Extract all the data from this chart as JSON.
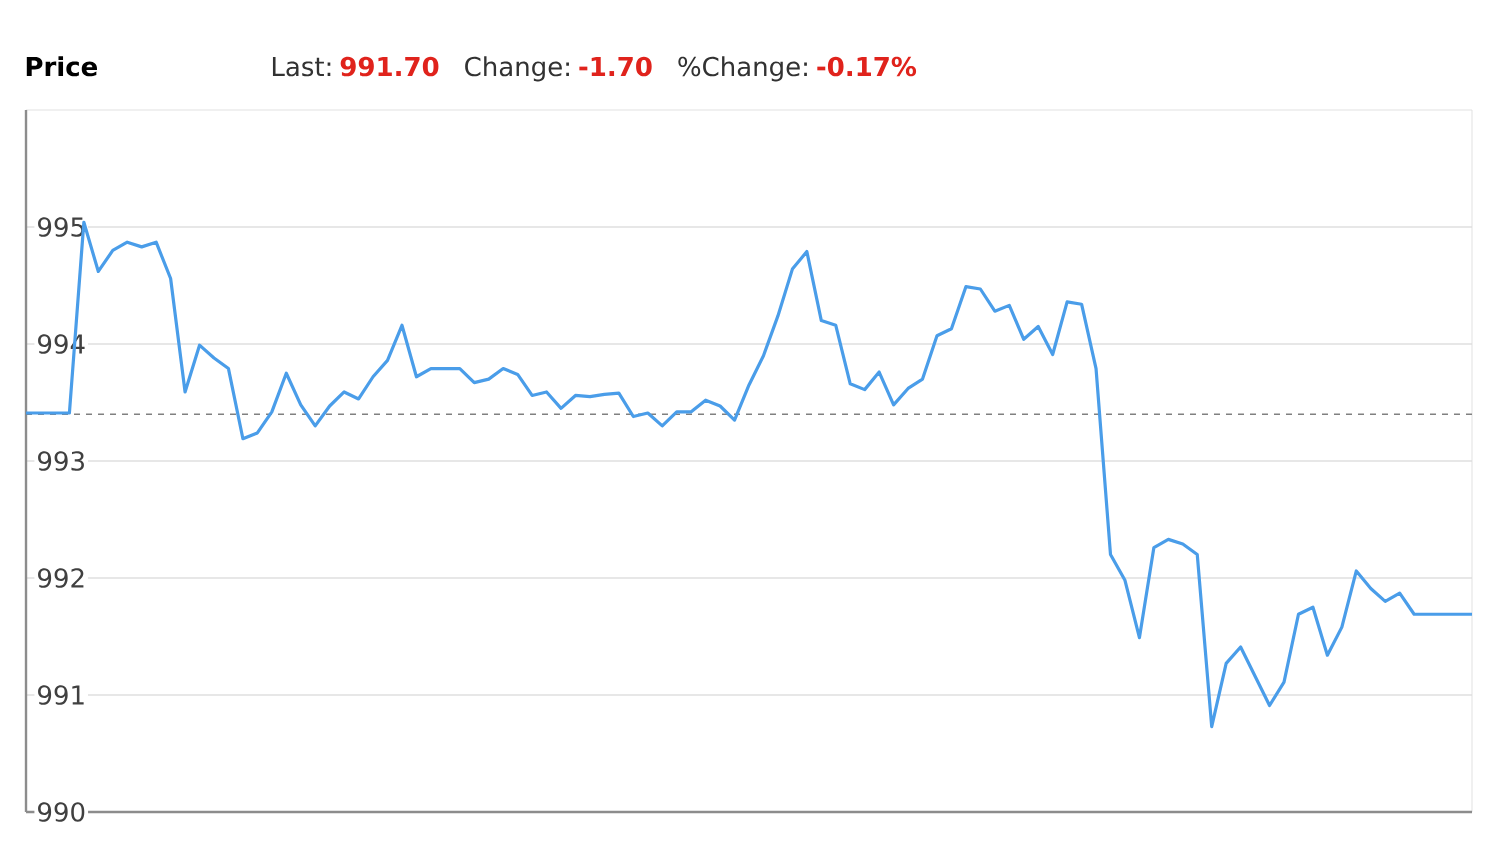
{
  "chart_data": {
    "type": "line",
    "title": "Price",
    "annotations": [
      "Last:",
      "991.70",
      "Change:",
      "-1.70",
      "%Change:",
      "-0.17%"
    ],
    "categories": [
      null,
      null,
      null,
      null,
      null,
      null,
      null,
      null,
      null,
      null,
      null,
      null,
      null,
      null,
      null,
      null,
      null,
      null,
      null,
      null,
      null,
      null,
      null,
      null,
      null,
      null,
      null,
      null,
      null,
      null,
      null,
      null,
      null,
      null,
      null,
      null,
      null,
      null,
      null,
      null,
      null,
      null,
      null,
      null,
      null,
      null,
      null,
      null,
      null,
      null,
      null,
      null,
      null,
      null,
      null,
      null,
      null,
      null,
      null,
      null,
      null,
      null,
      null,
      null,
      null,
      null,
      null,
      null,
      null,
      null,
      null,
      null,
      null,
      null,
      null,
      null,
      null,
      null,
      null,
      null,
      null,
      null,
      null,
      null,
      null,
      null,
      null,
      null,
      null,
      null,
      null,
      null,
      null,
      null,
      null,
      null,
      null,
      null,
      null,
      null,
      null
    ],
    "values": [
      993.41,
      993.41,
      993.41,
      993.41,
      995.04,
      994.62,
      994.8,
      994.87,
      994.83,
      994.87,
      994.56,
      993.59,
      993.99,
      993.88,
      993.79,
      993.19,
      993.24,
      993.42,
      993.75,
      993.48,
      993.3,
      993.47,
      993.59,
      993.53,
      993.72,
      993.86,
      994.16,
      993.72,
      993.79,
      993.79,
      993.79,
      993.67,
      993.7,
      993.79,
      993.74,
      993.56,
      993.59,
      993.45,
      993.56,
      993.55,
      993.57,
      993.58,
      993.38,
      993.41,
      993.3,
      993.42,
      993.42,
      993.52,
      993.47,
      993.35,
      993.65,
      993.9,
      994.24,
      994.64,
      994.79,
      994.2,
      994.16,
      993.66,
      993.61,
      993.76,
      993.48,
      993.62,
      993.7,
      994.07,
      994.13,
      994.49,
      994.47,
      994.28,
      994.33,
      994.04,
      994.15,
      993.91,
      994.36,
      994.34,
      993.79,
      992.2,
      991.98,
      991.49,
      992.26,
      992.33,
      992.29,
      992.2,
      990.73,
      991.27,
      991.41,
      991.16,
      990.91,
      991.11,
      991.69,
      991.75,
      991.34,
      991.58,
      992.06,
      991.91,
      991.8,
      991.87,
      991.69,
      991.69,
      991.69,
      991.69,
      991.69
    ],
    "color": "#4a9de9",
    "line_style": "solid",
    "ylim": [
      990,
      996
    ],
    "yticks": [
      990,
      991,
      992,
      993,
      994,
      995
    ],
    "grid": "y",
    "tick_labels": "y",
    "ref_lines": [
      {
        "axis": "y",
        "value": 993.4,
        "color": "#808080",
        "line_style": "dashed"
      }
    ]
  }
}
